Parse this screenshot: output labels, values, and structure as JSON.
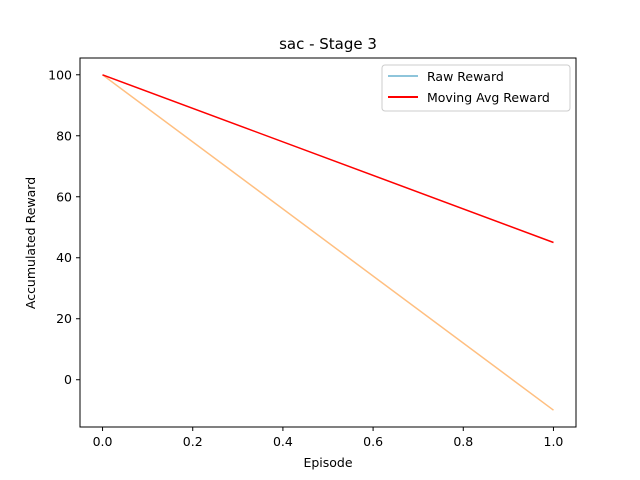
{
  "chart_data": {
    "type": "line",
    "title": "sac - Stage 3",
    "xlabel": "Episode",
    "ylabel": "Accumulated Reward",
    "xlim": [
      -0.05,
      1.05
    ],
    "ylim": [
      -15.5,
      105.5
    ],
    "xticks": [
      0.0,
      0.2,
      0.4,
      0.6,
      0.8,
      1.0
    ],
    "xtick_labels": [
      "0.0",
      "0.2",
      "0.4",
      "0.6",
      "0.8",
      "1.0"
    ],
    "yticks": [
      0,
      20,
      40,
      60,
      80,
      100
    ],
    "ytick_labels": [
      "0",
      "20",
      "40",
      "60",
      "80",
      "100"
    ],
    "grid": false,
    "legend_position": "top-right",
    "series": [
      {
        "name": "Raw Reward",
        "legend_color": "#8ec5db",
        "line_color": "#ffbf80",
        "x": [
          0.0,
          1.0
        ],
        "y": [
          100,
          -10
        ]
      },
      {
        "name": "Moving Avg Reward",
        "legend_color": "#ff0000",
        "line_color": "#ff0000",
        "x": [
          0.0,
          1.0
        ],
        "y": [
          100,
          45
        ]
      }
    ]
  }
}
